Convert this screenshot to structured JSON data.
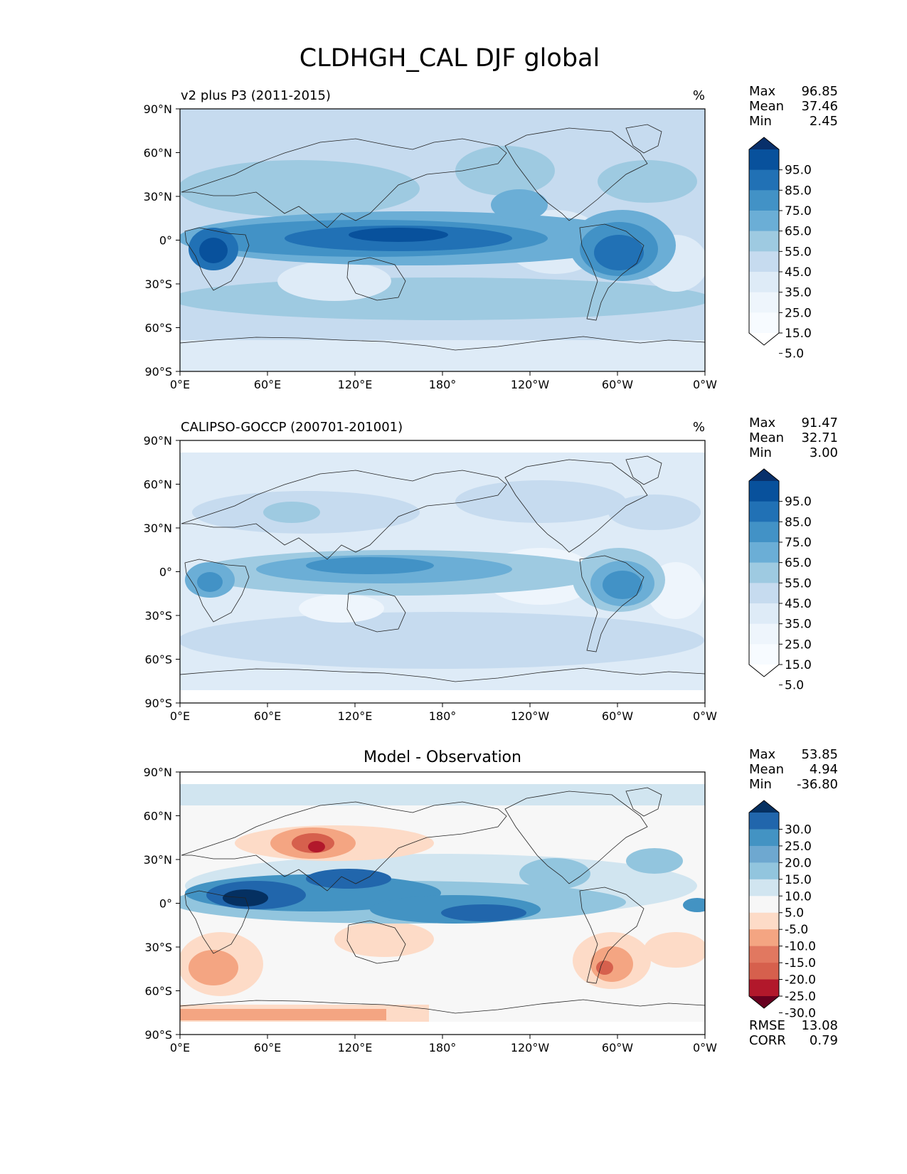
{
  "figure": {
    "title": "CLDHGH_CAL DJF global"
  },
  "axes": {
    "lat_ticks": [
      "90°N",
      "60°N",
      "30°N",
      "0°",
      "30°S",
      "60°S",
      "90°S"
    ],
    "lon_ticks": [
      "0°E",
      "60°E",
      "120°E",
      "180°",
      "120°W",
      "60°W",
      "0°W"
    ]
  },
  "panels": [
    {
      "id": "model",
      "title_left": "v2 plus P3 (2011-2015)",
      "title_center": "",
      "units": "%",
      "stats": [
        {
          "label": "Max",
          "value": "96.85"
        },
        {
          "label": "Mean",
          "value": "37.46"
        },
        {
          "label": "Min",
          "value": "2.45"
        }
      ],
      "colorbar": {
        "labels": [
          "95.0",
          "85.0",
          "75.0",
          "65.0",
          "55.0",
          "45.0",
          "35.0",
          "25.0",
          "15.0",
          "5.0"
        ],
        "colors": [
          "#08306b",
          "#08519c",
          "#2171b5",
          "#4292c6",
          "#6baed6",
          "#9ecae1",
          "#c6dbef",
          "#deebf7",
          "#eef5fc",
          "#f7fbff",
          "#ffffff"
        ]
      },
      "footer": []
    },
    {
      "id": "obs",
      "title_left": "CALIPSO-GOCCP (200701-201001)",
      "title_center": "",
      "units": "%",
      "stats": [
        {
          "label": "Max",
          "value": "91.47"
        },
        {
          "label": "Mean",
          "value": "32.71"
        },
        {
          "label": "Min",
          "value": "3.00"
        }
      ],
      "colorbar": {
        "labels": [
          "95.0",
          "85.0",
          "75.0",
          "65.0",
          "55.0",
          "45.0",
          "35.0",
          "25.0",
          "15.0",
          "5.0"
        ],
        "colors": [
          "#08306b",
          "#08519c",
          "#2171b5",
          "#4292c6",
          "#6baed6",
          "#9ecae1",
          "#c6dbef",
          "#deebf7",
          "#eef5fc",
          "#f7fbff",
          "#ffffff"
        ]
      },
      "footer": []
    },
    {
      "id": "diff",
      "title_left": "",
      "title_center": "Model - Observation",
      "units": "",
      "stats": [
        {
          "label": "Max",
          "value": "53.85"
        },
        {
          "label": "Mean",
          "value": "4.94"
        },
        {
          "label": "Min",
          "value": "-36.80"
        }
      ],
      "colorbar": {
        "labels": [
          "30.0",
          "25.0",
          "20.0",
          "15.0",
          "10.0",
          "5.0",
          "-5.0",
          "-10.0",
          "-15.0",
          "-20.0",
          "-25.0",
          "-30.0"
        ],
        "colors": [
          "#053061",
          "#2166ac",
          "#4393c3",
          "#6ea8d0",
          "#92c5de",
          "#d1e5f0",
          "#f7f7f7",
          "#fddbc7",
          "#f4a582",
          "#e17860",
          "#d6604d",
          "#b2182b",
          "#67001f"
        ]
      },
      "footer": [
        {
          "label": "RMSE",
          "value": "13.08"
        },
        {
          "label": "CORR",
          "value": "0.79"
        }
      ]
    }
  ]
}
